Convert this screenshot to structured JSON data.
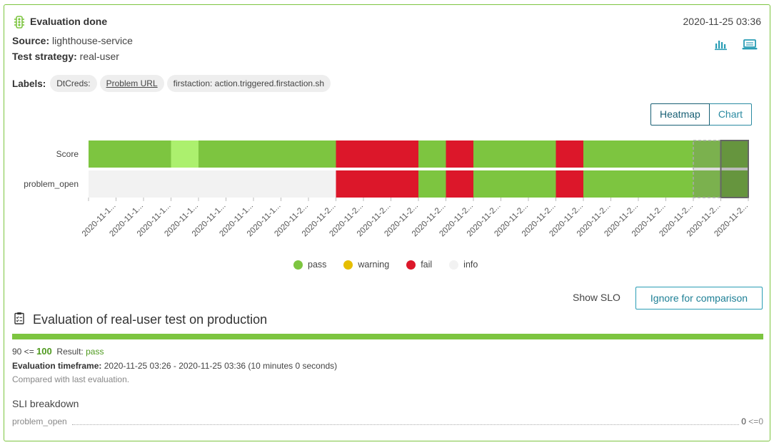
{
  "header": {
    "title": "Evaluation done",
    "timestamp": "2020-11-25 03:36",
    "source_label": "Source:",
    "source_value": "lighthouse-service",
    "strategy_label": "Test strategy:",
    "strategy_value": "real-user",
    "chart_icon": "bar-chart-icon",
    "laptop_icon": "laptop-icon",
    "status_icon": "traffic-light-icon"
  },
  "labels": {
    "title": "Labels:",
    "chips": [
      "DtCreds:",
      "Problem URL",
      "firstaction: action.triggered.firstaction.sh"
    ]
  },
  "view_toggle": {
    "heatmap": "Heatmap",
    "chart": "Chart",
    "active": "Heatmap"
  },
  "colors": {
    "pass": "#7dc540",
    "warning": "#e6be00",
    "fail": "#dc172a",
    "info": "#f2f2f2",
    "accent": "#2a9db5"
  },
  "chart_data": {
    "type": "heatmap",
    "rows": [
      "Score",
      "problem_open"
    ],
    "columns": [
      "2020-11-1...",
      "2020-11-1...",
      "2020-11-1...",
      "2020-11-1...",
      "2020-11-1...",
      "2020-11-1...",
      "2020-11-1...",
      "2020-11-2...",
      "2020-11-2...",
      "2020-11-2...",
      "2020-11-2...",
      "2020-11-2...",
      "2020-11-2...",
      "2020-11-2...",
      "2020-11-2...",
      "2020-11-2...",
      "2020-11-2...",
      "2020-11-2...",
      "2020-11-2...",
      "2020-11-2...",
      "2020-11-2...",
      "2020-11-2...",
      "2020-11-2...",
      "2020-11-2..."
    ],
    "cells": [
      [
        "pass",
        "pass",
        "pass",
        "pass_light",
        "pass",
        "pass",
        "pass",
        "pass",
        "pass",
        "fail",
        "fail",
        "fail",
        "pass",
        "fail",
        "pass",
        "pass",
        "pass",
        "fail",
        "pass",
        "pass",
        "pass",
        "pass",
        "pass",
        "pass"
      ],
      [
        "info",
        "info",
        "info",
        "info",
        "info",
        "info",
        "info",
        "info",
        "info",
        "fail",
        "fail",
        "fail",
        "pass",
        "fail",
        "pass",
        "pass",
        "pass",
        "fail",
        "pass",
        "pass",
        "pass",
        "pass",
        "pass",
        "pass"
      ]
    ],
    "highlight_compared": 22,
    "highlight_selected": 23,
    "legend": [
      {
        "label": "pass",
        "color": "#7dc540"
      },
      {
        "label": "warning",
        "color": "#e6be00"
      },
      {
        "label": "fail",
        "color": "#dc172a"
      },
      {
        "label": "info",
        "color": "#f2f2f2"
      }
    ]
  },
  "actions": {
    "show_slo": "Show SLO",
    "ignore": "Ignore for comparison"
  },
  "evaluation": {
    "icon": "clipboard-checklist-icon",
    "title": "Evaluation of real-user test on production",
    "score_prefix": "90 <=",
    "score": "100",
    "result_label": "Result:",
    "result": "pass",
    "timeframe_label": "Evaluation timeframe:",
    "timeframe": "2020-11-25 03:26 - 2020-11-25 03:36 (10 minutes 0 seconds)",
    "compared": "Compared with last evaluation."
  },
  "sli": {
    "title": "SLI breakdown",
    "rows": [
      {
        "name": "problem_open",
        "value": "0",
        "criteria": "<=0"
      }
    ]
  }
}
